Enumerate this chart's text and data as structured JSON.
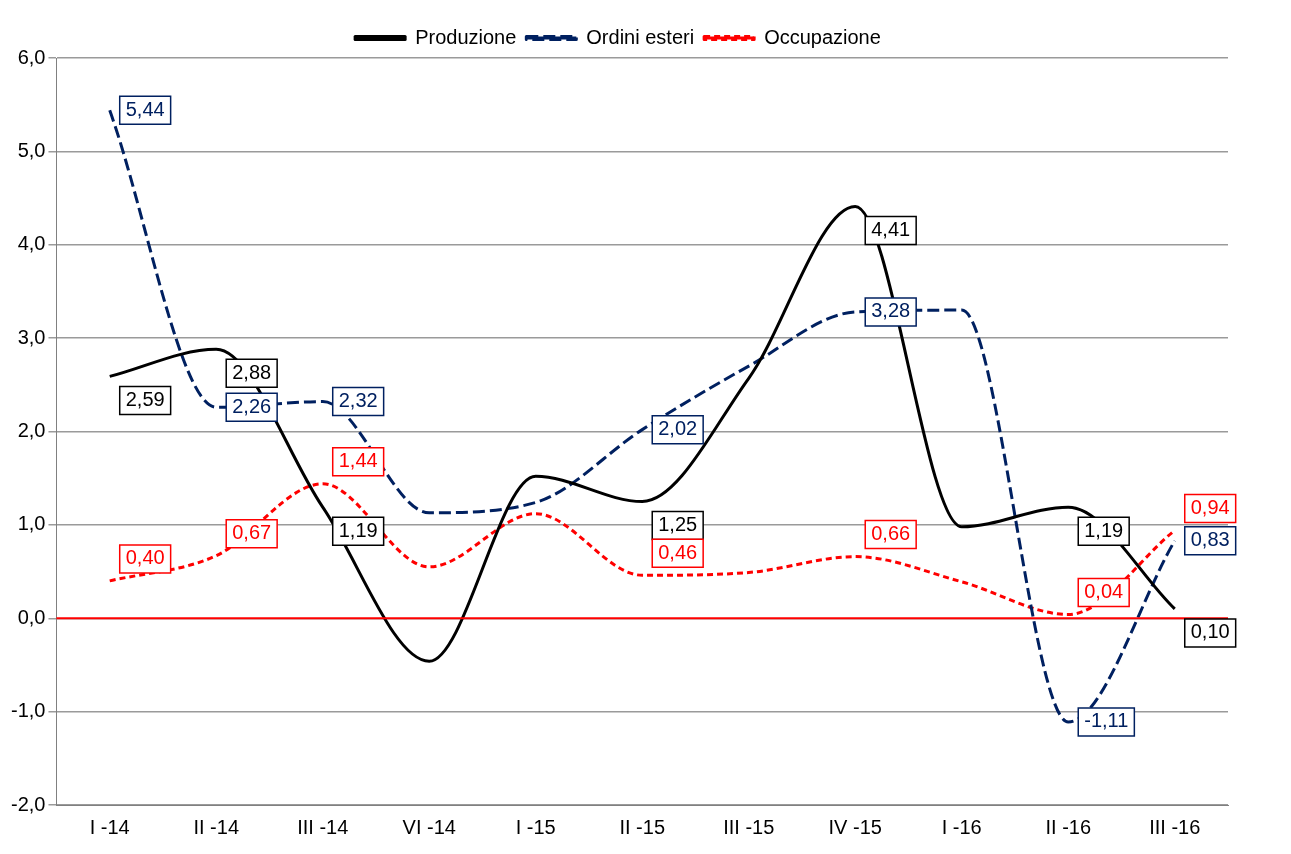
{
  "chart_data": {
    "type": "line",
    "categories": [
      "I -14",
      "II -14",
      "III -14",
      "VI -14",
      "I -15",
      "II -15",
      "III -15",
      "IV -15",
      "I -16",
      "II -16",
      "III -16"
    ],
    "ylim": [
      -2,
      6
    ],
    "yticks": [
      {
        "value": -2,
        "label": "-2,0"
      },
      {
        "value": -1,
        "label": "-1,0"
      },
      {
        "value": 0,
        "label": "0,0"
      },
      {
        "value": 1,
        "label": "1,0"
      },
      {
        "value": 2,
        "label": "2,0"
      },
      {
        "value": 3,
        "label": "3,0"
      },
      {
        "value": 4,
        "label": "4,0"
      },
      {
        "value": 5,
        "label": "5,0"
      },
      {
        "value": 6,
        "label": "6,0"
      }
    ],
    "grid": "y",
    "legend": "top",
    "marker": "none",
    "ref_lines": [
      {
        "axis": "y",
        "value": 0,
        "color": "#ff0000"
      }
    ],
    "series": [
      {
        "name": "Produzione",
        "color": "#000000",
        "line_style": "solid",
        "values": [
          2.59,
          2.88,
          1.19,
          -0.46,
          1.52,
          1.25,
          2.57,
          4.41,
          0.98,
          1.19,
          0.1
        ],
        "value_labels": [
          "2,59",
          "2,88",
          "1,19",
          null,
          null,
          "1,25",
          null,
          "4,41",
          null,
          "1,19",
          "0,10"
        ]
      },
      {
        "name": "Ordini esteri",
        "color": "#002060",
        "line_style": "dashed",
        "values": [
          5.44,
          2.26,
          2.32,
          1.13,
          1.24,
          2.02,
          2.7,
          3.28,
          3.3,
          -1.11,
          0.83
        ],
        "value_labels": [
          "5,44",
          "2,26",
          "2,32",
          null,
          null,
          "2,02",
          null,
          "3,28",
          null,
          "-1,11",
          "0,83"
        ]
      },
      {
        "name": "Occupazione",
        "color": "#ff0000",
        "line_style": "dotted",
        "values": [
          0.4,
          0.67,
          1.44,
          0.55,
          1.12,
          0.46,
          0.49,
          0.66,
          0.39,
          0.04,
          0.94
        ],
        "value_labels": [
          "0,40",
          "0,67",
          "1,44",
          null,
          null,
          "0,46",
          null,
          "0,66",
          null,
          "0,04",
          "0,94"
        ]
      }
    ]
  }
}
